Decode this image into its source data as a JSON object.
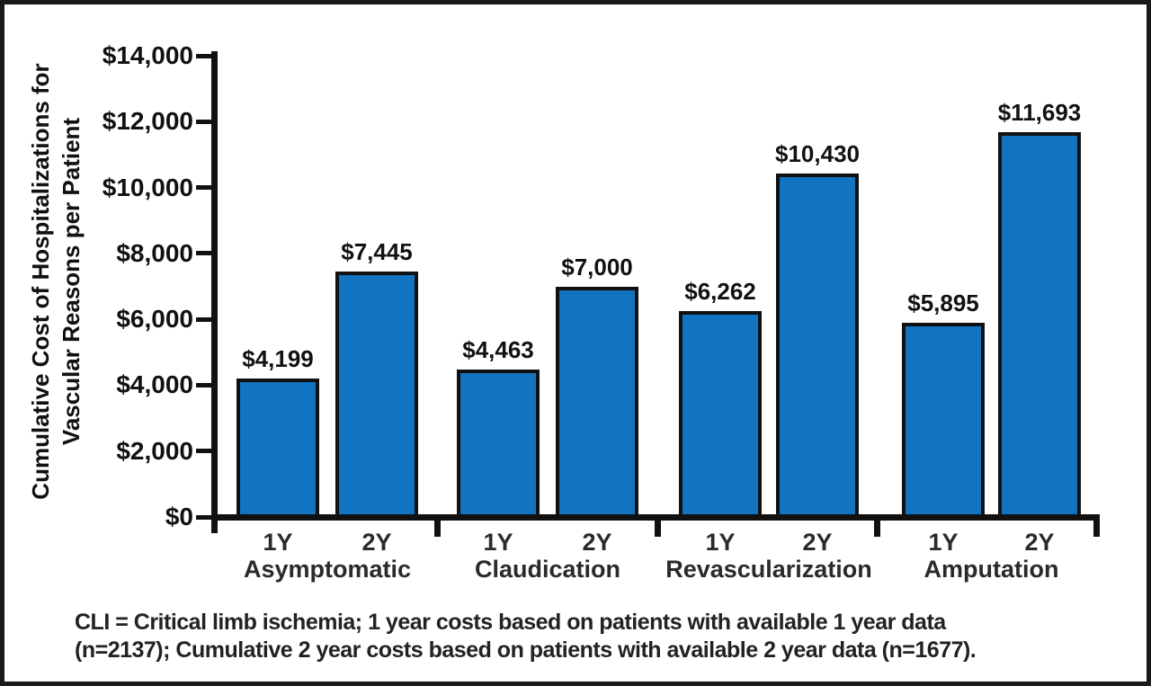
{
  "figure": {
    "background_color": "#ffffff",
    "frame_border_color": "#1a1a1a"
  },
  "y_axis": {
    "label_line1": "Cumulative Cost of Hospitalizations for",
    "label_line2": "Vascular Reasons per Patient"
  },
  "footnote": {
    "line1": "CLI = Critical limb ischemia; 1 year costs based on patients with available 1 year data",
    "line2": "(n=2137); Cumulative 2 year costs based on patients with available 2 year data (n=1677)."
  },
  "chart_data": {
    "type": "bar",
    "title": "",
    "xlabel": "",
    "ylabel": "Cumulative Cost of Hospitalizations for Vascular Reasons per Patient",
    "ylim": [
      0,
      14000
    ],
    "y_tick_values": [
      0,
      2000,
      4000,
      6000,
      8000,
      10000,
      12000,
      14000
    ],
    "y_tick_labels": [
      "$0",
      "$2,000",
      "$4,000",
      "$6,000",
      "$8,000",
      "$10,000",
      "$12,000",
      "$14,000"
    ],
    "grid": false,
    "legend": "none",
    "bar_color": "#1274c0",
    "bar_border_color": "#111111",
    "groups": [
      {
        "category": "Asymptomatic",
        "bars": [
          {
            "label": "1Y",
            "value": 4199,
            "value_label": "$4,199"
          },
          {
            "label": "2Y",
            "value": 7445,
            "value_label": "$7,445"
          }
        ]
      },
      {
        "category": "Claudication",
        "bars": [
          {
            "label": "1Y",
            "value": 4463,
            "value_label": "$4,463"
          },
          {
            "label": "2Y",
            "value": 7000,
            "value_label": "$7,000"
          }
        ]
      },
      {
        "category": "Revascularization",
        "bars": [
          {
            "label": "1Y",
            "value": 6262,
            "value_label": "$6,262"
          },
          {
            "label": "2Y",
            "value": 10430,
            "value_label": "$10,430"
          }
        ]
      },
      {
        "category": "Amputation",
        "bars": [
          {
            "label": "1Y",
            "value": 5895,
            "value_label": "$5,895"
          },
          {
            "label": "2Y",
            "value": 11693,
            "value_label": "$11,693"
          }
        ]
      }
    ]
  }
}
